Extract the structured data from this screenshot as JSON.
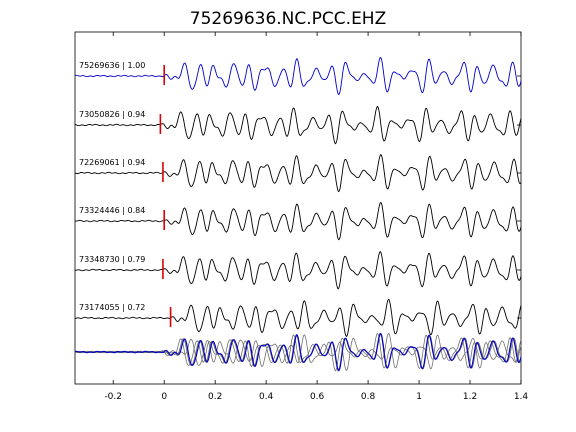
{
  "chart_data": {
    "type": "line",
    "title": "75269636.NC.PCC.EHZ",
    "xlabel": "",
    "ylabel": "",
    "xlim": [
      -0.35,
      1.4
    ],
    "x_ticks": [
      -0.2,
      0,
      0.2,
      0.4,
      0.6,
      0.8,
      1,
      1.2,
      1.4
    ],
    "x_tick_labels": [
      "-0.2",
      "0",
      "0.2",
      "0.4",
      "0.6",
      "0.8",
      "1",
      "1.2",
      "1.4"
    ],
    "grid": false,
    "colors": {
      "reference": "#0000cc",
      "trace": "#000000",
      "stack": "#707070",
      "pick": "#dd0000"
    },
    "traces": [
      {
        "label": "75269636 | 1.00",
        "id": "75269636",
        "correlation": 1.0,
        "pick_time": 0.0,
        "reference": true
      },
      {
        "label": "73050826 | 0.94",
        "id": "73050826",
        "correlation": 0.94,
        "pick_time": -0.015,
        "reference": false
      },
      {
        "label": "72269061 | 0.94",
        "id": "72269061",
        "correlation": 0.94,
        "pick_time": -0.005,
        "reference": false
      },
      {
        "label": "73324446 | 0.84",
        "id": "73324446",
        "correlation": 0.84,
        "pick_time": 0.0,
        "reference": false
      },
      {
        "label": "73348730 | 0.79",
        "id": "73348730",
        "correlation": 0.79,
        "pick_time": -0.005,
        "reference": false
      },
      {
        "label": "73174055 | 0.72",
        "id": "73174055",
        "correlation": 0.72,
        "pick_time": 0.025,
        "reference": false
      }
    ],
    "stack": {
      "label": "",
      "overlaid_traces": 6
    }
  }
}
